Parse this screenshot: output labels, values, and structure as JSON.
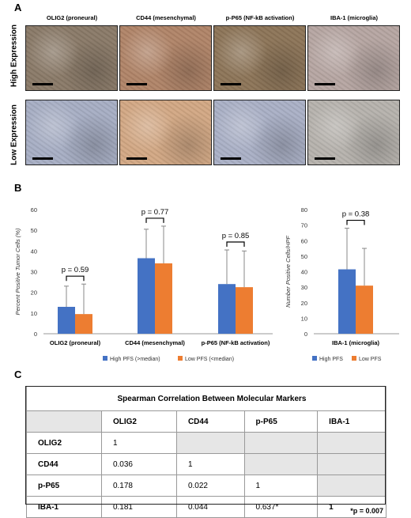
{
  "panels": {
    "a": "A",
    "b": "B",
    "c": "C"
  },
  "panel_a": {
    "columns": [
      "OLIG2 (proneural)",
      "CD44 (mesenchymal)",
      "p-P65 (NF-kB activation)",
      "IBA-1 (microglia)"
    ],
    "rows": [
      "High Expression",
      "Low Expression"
    ],
    "tile_colors": {
      "high": [
        "#8a7a68",
        "#b08468",
        "#8d7558",
        "#b6a6a2"
      ],
      "low": [
        "#a7aec4",
        "#d2a884",
        "#aab0c6",
        "#b6b2ad"
      ]
    }
  },
  "chart_data": [
    {
      "type": "bar",
      "categories": [
        "OLIG2 (proneural)",
        "CD44 (mesenchymal)",
        "p-P65 (NF-kB activation)"
      ],
      "series": [
        {
          "name": "High PFS (>median)",
          "values": [
            13,
            36.5,
            24
          ],
          "error": [
            10,
            14,
            16.5
          ],
          "color": "#4472c4"
        },
        {
          "name": "Low PFS (<median)",
          "values": [
            9.5,
            34,
            22.5
          ],
          "error": [
            14.5,
            18,
            17.5
          ],
          "color": "#ed7d31"
        }
      ],
      "ylabel": "Percent Positive Tumor Cells (%)",
      "ylim": [
        0,
        60
      ],
      "yticks": [
        0,
        10,
        20,
        30,
        40,
        50,
        60
      ],
      "pvalues": [
        "p = 0.59",
        "p = 0.77",
        "p = 0.85"
      ],
      "legend": "bottom"
    },
    {
      "type": "bar",
      "categories": [
        "IBA-1 (microglia)"
      ],
      "series": [
        {
          "name": "High PFS",
          "values": [
            41.5
          ],
          "error": [
            26.5
          ],
          "color": "#4472c4"
        },
        {
          "name": "Low PFS",
          "values": [
            31
          ],
          "error": [
            24
          ],
          "color": "#ed7d31"
        }
      ],
      "ylabel": "Number Positive Cells/HPF",
      "ylim": [
        0,
        80
      ],
      "yticks": [
        0,
        10,
        20,
        30,
        40,
        50,
        60,
        70,
        80
      ],
      "pvalues": [
        "p = 0.38"
      ],
      "legend": "bottom"
    }
  ],
  "table": {
    "title": "Spearman Correlation Between Molecular Markers",
    "headers": [
      "",
      "OLIG2",
      "CD44",
      "p-P65",
      "IBA-1"
    ],
    "rows": [
      [
        "OLIG2",
        "1",
        "",
        "",
        ""
      ],
      [
        "CD44",
        "0.036",
        "1",
        "",
        ""
      ],
      [
        "p-P65",
        "0.178",
        "0.022",
        "1",
        ""
      ],
      [
        "IBA-1",
        "0.181",
        "0.044",
        "0.637*",
        "1"
      ]
    ],
    "footnote": "*p = 0.007"
  }
}
